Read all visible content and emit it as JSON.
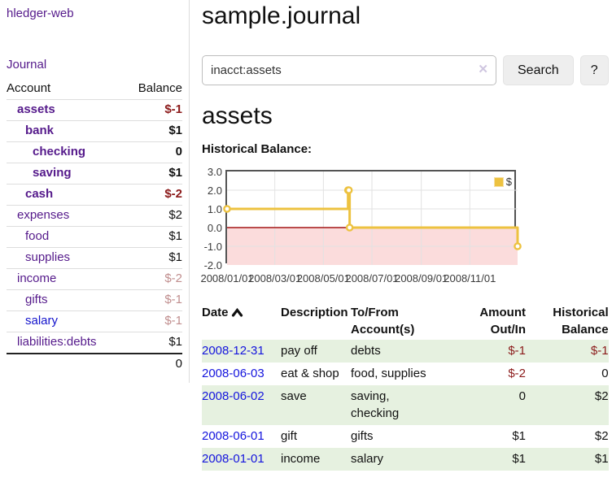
{
  "sidebar": {
    "app_title": "hledger-web",
    "journal_label": "Journal",
    "accounts_table": {
      "headers": {
        "account": "Account",
        "balance": "Balance"
      },
      "rows": [
        {
          "name": "assets",
          "balance": "$-1"
        },
        {
          "name": "bank",
          "balance": "$1"
        },
        {
          "name": "checking",
          "balance": "0"
        },
        {
          "name": "saving",
          "balance": "$1"
        },
        {
          "name": "cash",
          "balance": "$-2"
        },
        {
          "name": "expenses",
          "balance": "$2"
        },
        {
          "name": "food",
          "balance": "$1"
        },
        {
          "name": "supplies",
          "balance": "$1"
        },
        {
          "name": "income",
          "balance": "$-2"
        },
        {
          "name": "gifts",
          "balance": "$-1"
        },
        {
          "name": "salary",
          "balance": "$-1"
        },
        {
          "name": "liabilities:debts",
          "balance": "$1"
        }
      ],
      "total": "0"
    }
  },
  "header": {
    "title": "sample.journal"
  },
  "search": {
    "value": "inacct:assets",
    "clear_icon": "✕",
    "search_label": "Search",
    "help_label": "?"
  },
  "account_page": {
    "heading": "assets",
    "chart_label": "Historical Balance:"
  },
  "chart_data": {
    "type": "line",
    "title": "Historical Balance",
    "step": true,
    "xlim": [
      "2008-01-01",
      "2008-12-31"
    ],
    "ylim": [
      -2,
      3
    ],
    "series": [
      {
        "name": "$",
        "color": "#edc240",
        "points": [
          [
            "2008-01-01",
            1
          ],
          [
            "2008-06-01",
            2
          ],
          [
            "2008-06-02",
            2
          ],
          [
            "2008-06-03",
            0
          ],
          [
            "2008-12-31",
            -1
          ]
        ]
      }
    ],
    "y_ticks": [
      "3.0",
      "2.0",
      "1.0",
      "0.0",
      "-1.0",
      "-2.0"
    ],
    "x_ticks": [
      {
        "date": "2008-01-01",
        "label": "2008/01/01"
      },
      {
        "date": "2008-03-01",
        "label": "2008/03/01"
      },
      {
        "date": "2008-05-01",
        "label": "2008/05/01"
      },
      {
        "date": "2008-07-01",
        "label": "2008/07/01"
      },
      {
        "date": "2008-09-01",
        "label": "2008/09/01"
      },
      {
        "date": "2008-11-01",
        "label": "2008/11/01"
      }
    ],
    "legend": {
      "label": "$",
      "position": "top-right"
    },
    "grid": true,
    "grid_color": "#e2e2e2",
    "below_zero_fill": "#fbdcdc",
    "zero_line_color": "#a31515"
  },
  "transactions": {
    "headers": {
      "date": "Date",
      "description": "Description",
      "account": "To/From\nAccount(s)",
      "amount": "Amount\nOut/In",
      "balance": "Historical\nBalance"
    },
    "sort": "ascending",
    "rows": [
      {
        "date": "2008-12-31",
        "description": "pay off",
        "account": "debts",
        "amount": "$-1",
        "balance": "$-1"
      },
      {
        "date": "2008-06-03",
        "description": "eat & shop",
        "account": "food, supplies",
        "amount": "$-2",
        "balance": "0"
      },
      {
        "date": "2008-06-02",
        "description": "save",
        "account": "saving,\nchecking",
        "amount": "0",
        "balance": "$2"
      },
      {
        "date": "2008-06-01",
        "description": "gift",
        "account": "gifts",
        "amount": "$1",
        "balance": "$2"
      },
      {
        "date": "2008-01-01",
        "description": "income",
        "account": "salary",
        "amount": "$1",
        "balance": "$1"
      }
    ]
  },
  "colors": {
    "link_visited_purple": "#551a8b",
    "link_blue": "#1414dd",
    "negative_red": "#8b1a1a",
    "faded_negative": "#c08e8e",
    "row_stripe_green": "#e6f1e0",
    "series_gold": "#edc240"
  }
}
